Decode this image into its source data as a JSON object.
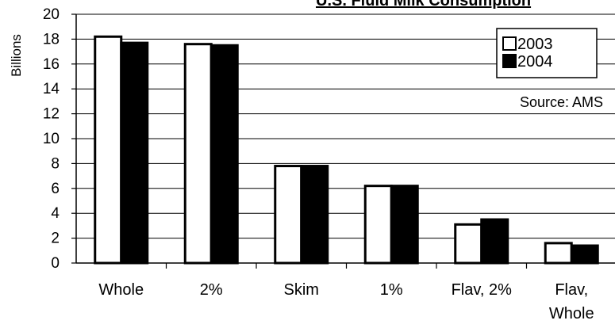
{
  "chart_data": {
    "type": "bar",
    "title": "U.S. Fluid Milk Consumption",
    "ylabel": "Billions",
    "xlabel": "",
    "ylim": [
      0,
      20
    ],
    "yticks": [
      0,
      2,
      4,
      6,
      8,
      10,
      12,
      14,
      16,
      18,
      20
    ],
    "grid": true,
    "legend": "top-right",
    "categories": [
      [
        "Whole"
      ],
      [
        "2%"
      ],
      [
        "Skim"
      ],
      [
        "1%"
      ],
      [
        "Flav, 2%"
      ],
      [
        "Flav,",
        "Whole"
      ]
    ],
    "series": [
      {
        "name": "2003",
        "values": [
          18.2,
          17.6,
          7.8,
          6.2,
          3.1,
          1.6
        ],
        "color": "#ffffff"
      },
      {
        "name": "2004",
        "values": [
          17.7,
          17.5,
          7.8,
          6.2,
          3.5,
          1.4
        ],
        "color": "#000000"
      }
    ],
    "annotation": "Source: AMS"
  }
}
